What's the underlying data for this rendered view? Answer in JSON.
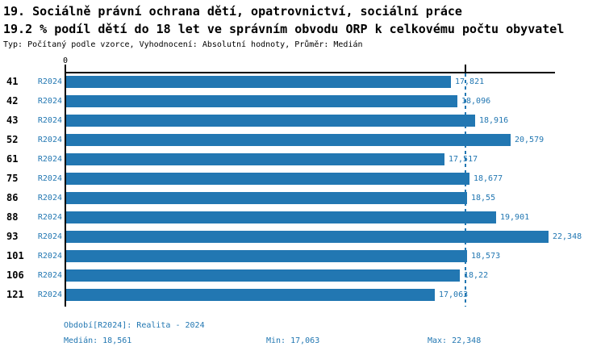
{
  "title": {
    "line1": "19. Sociálně právní ochrana dětí, opatrovnictví, sociální práce",
    "line2": "19.2 % podíl dětí do 18 let ve správním obvodu ORP k celkovému počtu obyvatel",
    "subtitle": "Typ: Počítaný podle vzorce, Vyhodnocení: Absolutní hodnoty, Průměr: Medián"
  },
  "chart_data": {
    "type": "bar",
    "orientation": "horizontal",
    "series_name": "R2024",
    "categories": [
      "41",
      "42",
      "43",
      "52",
      "61",
      "75",
      "86",
      "88",
      "93",
      "101",
      "106",
      "121"
    ],
    "values": [
      17.821,
      18.096,
      18.916,
      20.579,
      17.517,
      18.677,
      18.55,
      19.901,
      22.348,
      18.573,
      18.22,
      17.063
    ],
    "value_labels": [
      "17,821",
      "18,096",
      "18,916",
      "20,579",
      "17,517",
      "18,677",
      "18,55",
      "19,901",
      "22,348",
      "18,573",
      "18,22",
      "17,063"
    ],
    "axis_origin_label": "0",
    "xlim": [
      0,
      22.7
    ],
    "median_value": 18.561,
    "min_value": 17.063,
    "max_value": 22.348,
    "bar_color": "#2277b2",
    "median_line_style": "dashed",
    "grid": false,
    "legend": false
  },
  "footer": {
    "period": "Období[R2024]: Realita - 2024",
    "median": "Medián: 18,561",
    "min": "Min: 17,063",
    "max": "Max: 22,348"
  }
}
